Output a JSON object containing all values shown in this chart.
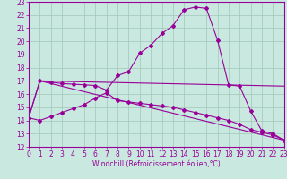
{
  "xlabel": "Windchill (Refroidissement éolien,°C)",
  "bg_color": "#c8e8e0",
  "line_color": "#990099",
  "ylim": [
    12,
    23
  ],
  "xlim": [
    0,
    23
  ],
  "ytick_vals": [
    12,
    13,
    14,
    15,
    16,
    17,
    18,
    19,
    20,
    21,
    22,
    23
  ],
  "xtick_vals": [
    0,
    1,
    2,
    3,
    4,
    5,
    6,
    7,
    8,
    9,
    10,
    11,
    12,
    13,
    14,
    15,
    16,
    17,
    18,
    19,
    20,
    21,
    22,
    23
  ],
  "line1_x": [
    0,
    1,
    2,
    3,
    4,
    5,
    6,
    7,
    8,
    9,
    10,
    11,
    12,
    13,
    14,
    15,
    16,
    17,
    18,
    19,
    20,
    21,
    22,
    23
  ],
  "line1_y": [
    14.2,
    14.0,
    14.3,
    14.6,
    14.9,
    15.2,
    15.7,
    16.1,
    15.5,
    15.4,
    15.3,
    15.2,
    15.1,
    15.0,
    14.8,
    14.6,
    14.4,
    14.2,
    14.0,
    13.7,
    13.3,
    13.1,
    12.9,
    12.5
  ],
  "line2_x": [
    0,
    1,
    2,
    3,
    4,
    5,
    6,
    7,
    8,
    9,
    10,
    11,
    12,
    13,
    14,
    15,
    16,
    17,
    18,
    19,
    20,
    21,
    22,
    23
  ],
  "line2_y": [
    14.2,
    17.0,
    16.9,
    16.8,
    16.75,
    16.7,
    16.65,
    16.3,
    17.4,
    17.7,
    19.1,
    19.7,
    20.6,
    21.2,
    22.4,
    22.6,
    22.5,
    20.1,
    16.7,
    16.6,
    14.7,
    13.2,
    13.0,
    12.5
  ],
  "line3_x": [
    0,
    1,
    23
  ],
  "line3_y": [
    14.2,
    17.0,
    12.5
  ],
  "line4_x": [
    1,
    23
  ],
  "line4_y": [
    17.0,
    16.6
  ],
  "grid_color": "#a0c8b8",
  "xlabel_fontsize": 5.5,
  "tick_fontsize": 5.5
}
